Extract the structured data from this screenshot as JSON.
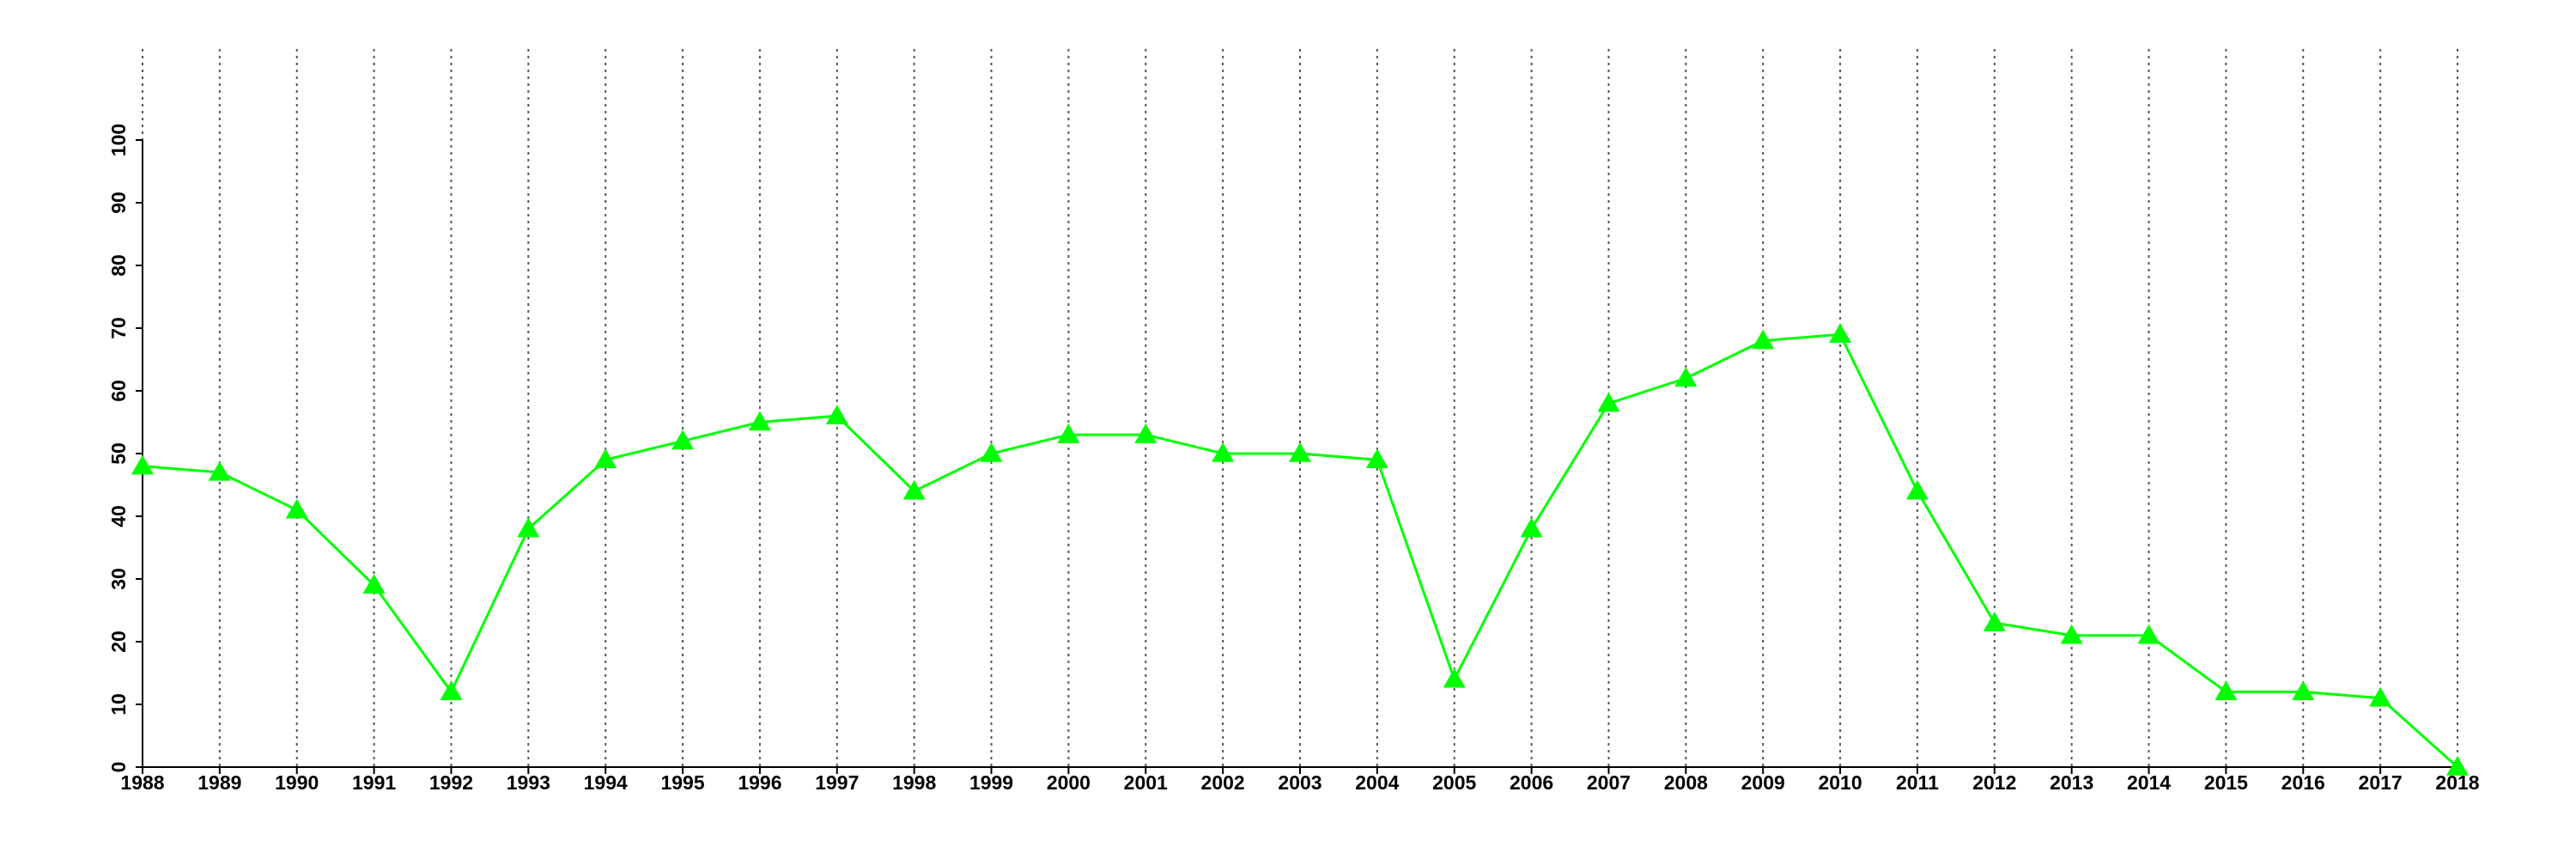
{
  "chart_data": {
    "type": "line",
    "x": [
      1988,
      1989,
      1990,
      1991,
      1992,
      1993,
      1994,
      1995,
      1996,
      1997,
      1998,
      1999,
      2000,
      2001,
      2002,
      2003,
      2004,
      2005,
      2006,
      2007,
      2008,
      2009,
      2010,
      2011,
      2012,
      2013,
      2014,
      2015,
      2016,
      2017,
      2018
    ],
    "values": [
      48,
      47,
      41,
      29,
      12,
      38,
      49,
      52,
      55,
      56,
      44,
      50,
      53,
      53,
      50,
      50,
      49,
      14,
      38,
      58,
      62,
      68,
      69,
      44,
      23,
      21,
      21,
      12,
      12,
      11,
      0
    ],
    "color": "#00ff00",
    "xlim": [
      1988,
      2018
    ],
    "xticks": [
      1988,
      1989,
      1990,
      1991,
      1992,
      1993,
      1994,
      1995,
      1996,
      1997,
      1998,
      1999,
      2000,
      2001,
      2002,
      2003,
      2004,
      2005,
      2006,
      2007,
      2008,
      2009,
      2010,
      2011,
      2012,
      2013,
      2014,
      2015,
      2016,
      2017,
      2018
    ],
    "ylim": [
      0,
      100
    ],
    "yticks": [
      0,
      10,
      20,
      30,
      40,
      50,
      60,
      70,
      80,
      90,
      100
    ],
    "grid": "x",
    "marker": "triangle"
  }
}
